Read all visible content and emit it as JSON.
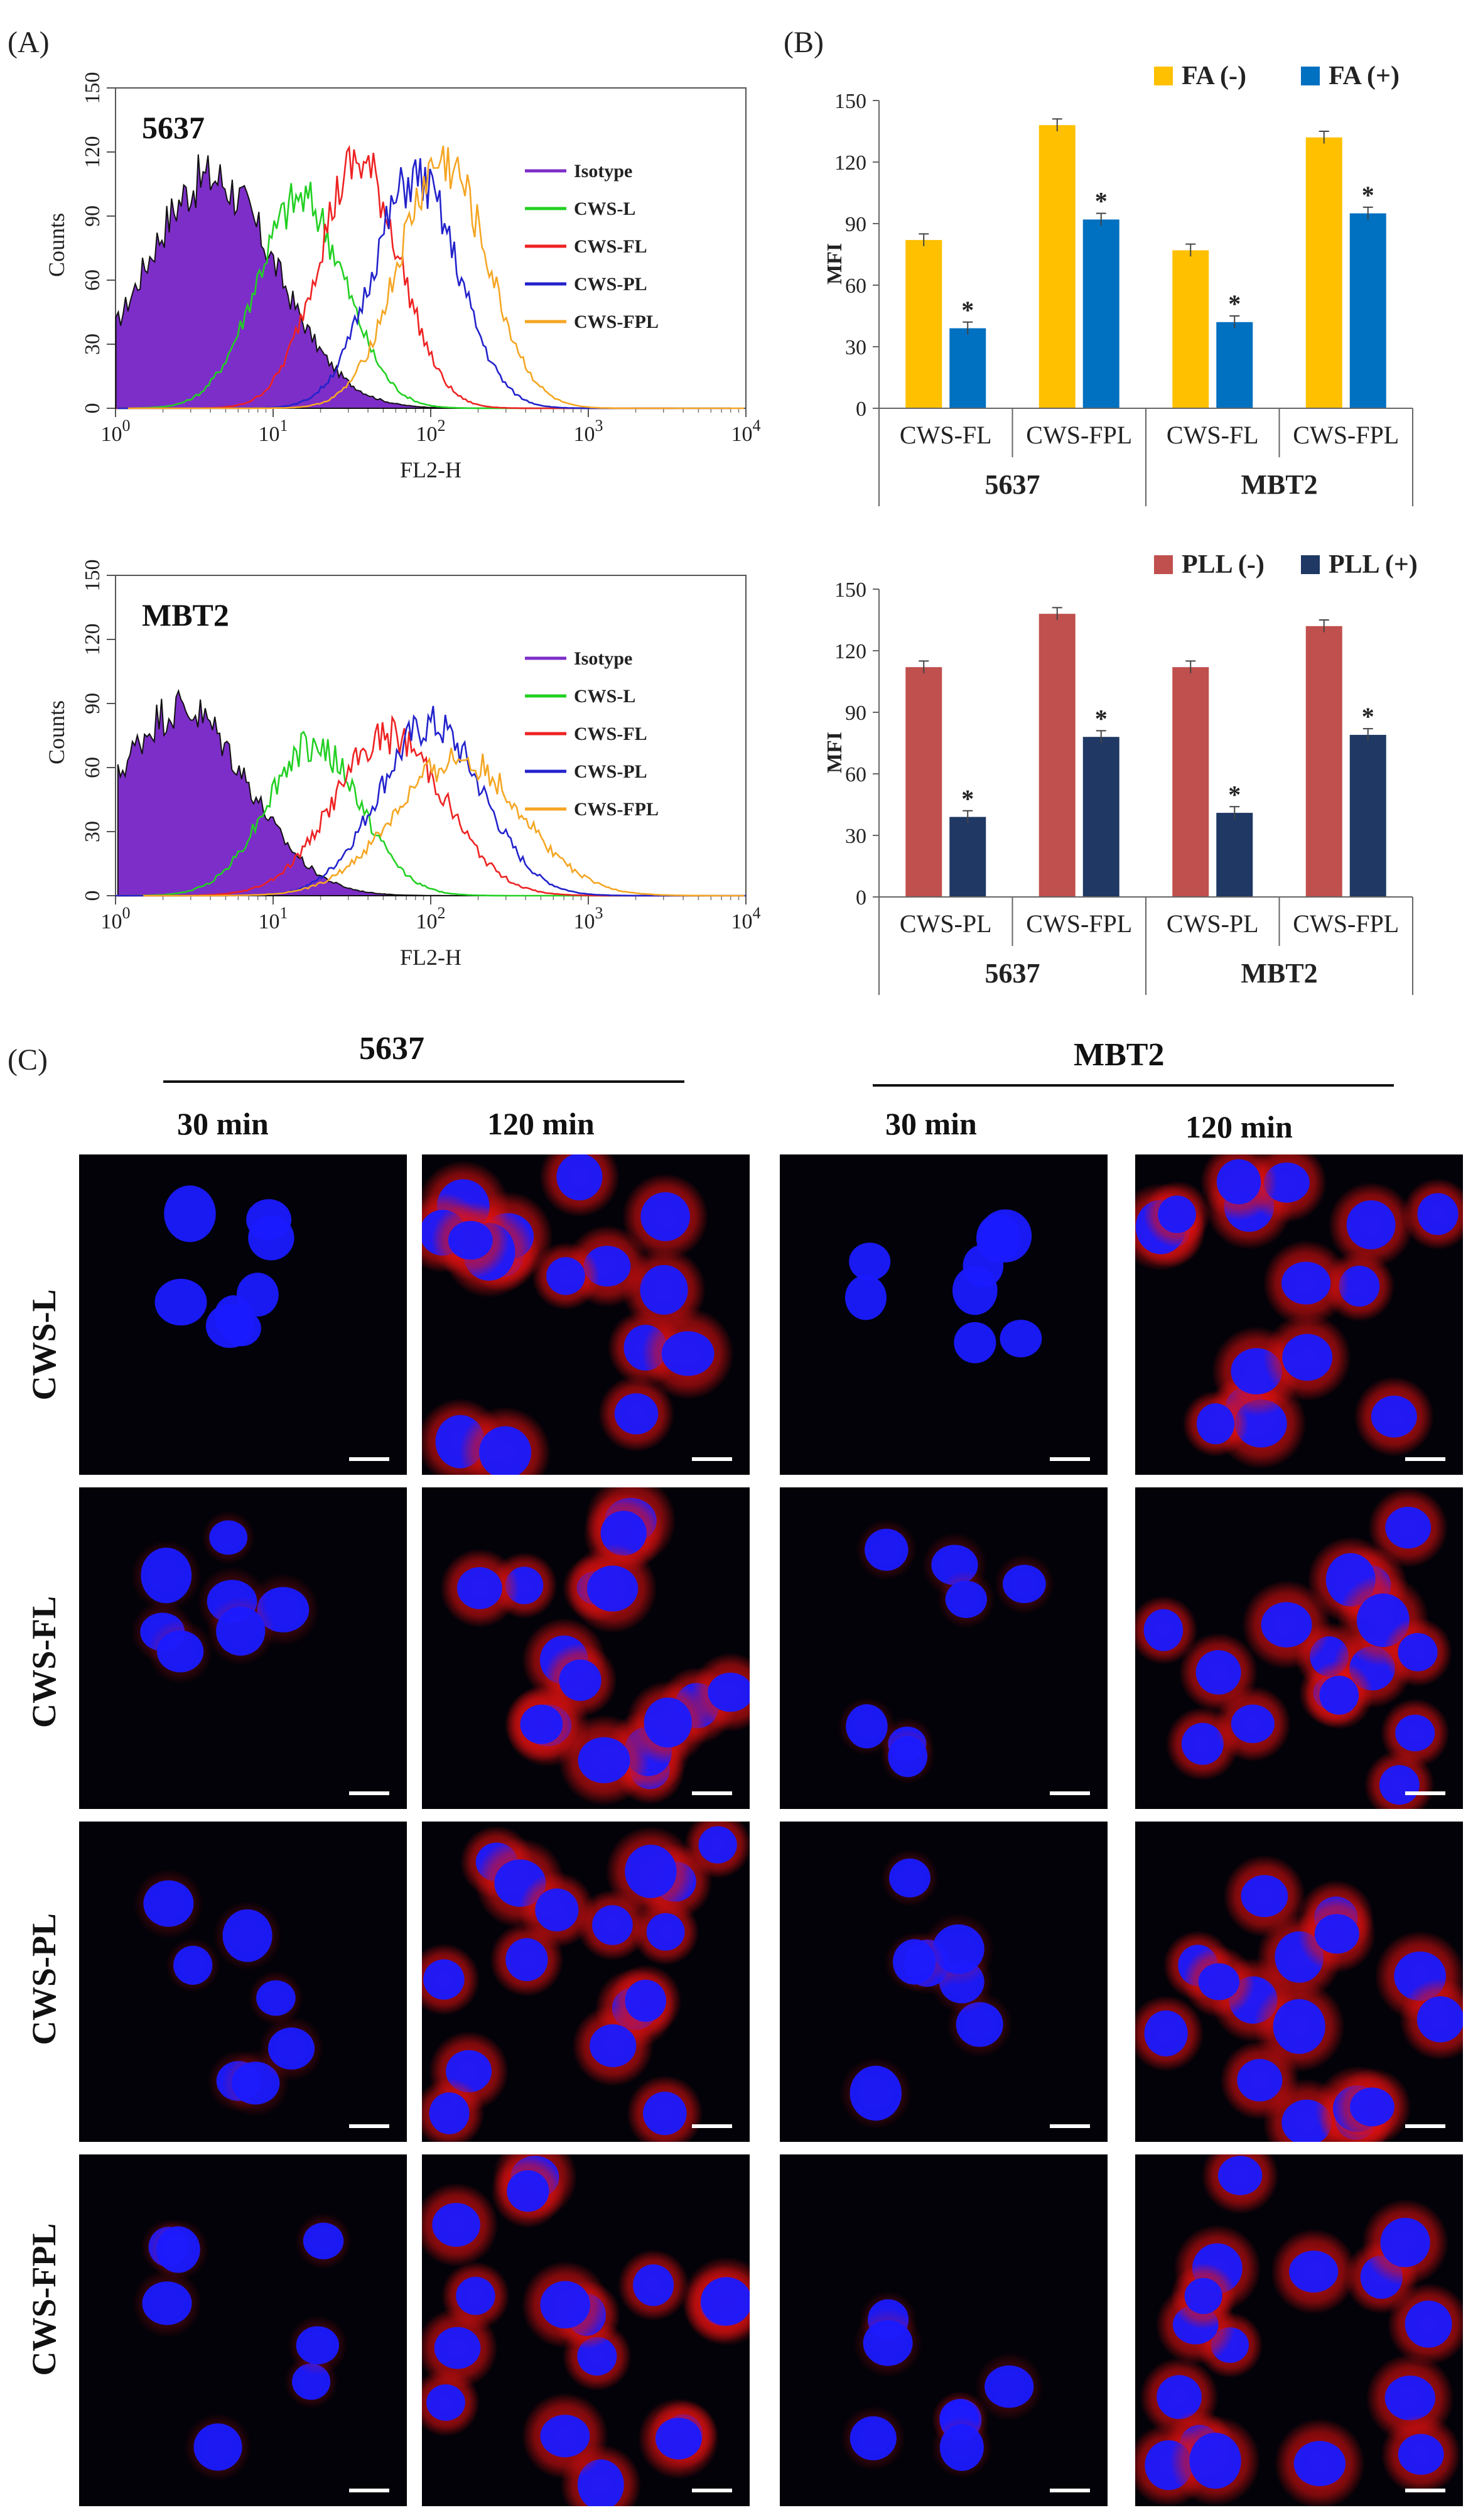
{
  "panels": {
    "A": "(A)",
    "B": "(B)",
    "C": "(C)"
  },
  "histograms": [
    {
      "cell_line": "5637",
      "ylabel": "Counts",
      "xlabel": "FL2-H",
      "y_ticks": [
        "0",
        "30",
        "60",
        "90",
        "120",
        "150"
      ],
      "x_ticks": [
        {
          "base": "10",
          "exp": "0"
        },
        {
          "base": "10",
          "exp": "1"
        },
        {
          "base": "10",
          "exp": "2"
        },
        {
          "base": "10",
          "exp": "3"
        },
        {
          "base": "10",
          "exp": "4"
        }
      ],
      "legend": [
        "Isotype",
        "CWS-L",
        "CWS-FL",
        "CWS-PL",
        "CWS-FPL"
      ]
    },
    {
      "cell_line": "MBT2",
      "ylabel": "Counts",
      "xlabel": "FL2-H",
      "y_ticks": [
        "0",
        "30",
        "60",
        "90",
        "120",
        "150"
      ],
      "x_ticks": [
        {
          "base": "10",
          "exp": "0"
        },
        {
          "base": "10",
          "exp": "1"
        },
        {
          "base": "10",
          "exp": "2"
        },
        {
          "base": "10",
          "exp": "3"
        },
        {
          "base": "10",
          "exp": "4"
        }
      ],
      "legend": [
        "Isotype",
        "CWS-L",
        "CWS-FL",
        "CWS-PL",
        "CWS-FPL"
      ]
    }
  ],
  "chart_data": [
    {
      "type": "line",
      "title": "5637",
      "xlabel": "FL2-H",
      "ylabel": "Counts",
      "xscale": "log",
      "xlim": [
        1,
        10000
      ],
      "ylim": [
        0,
        150
      ],
      "series": [
        {
          "name": "Isotype",
          "color": "#7d2ec8",
          "filled": true,
          "peak_x": 4,
          "peak_y": 108,
          "width": 0.42
        },
        {
          "name": "CWS-L",
          "color": "#22d022",
          "filled": false,
          "peak_x": 15,
          "peak_y": 98,
          "width": 0.28
        },
        {
          "name": "CWS-FL",
          "color": "#ee2222",
          "filled": false,
          "peak_x": 35,
          "peak_y": 115,
          "width": 0.26
        },
        {
          "name": "CWS-PL",
          "color": "#2222cc",
          "filled": false,
          "peak_x": 80,
          "peak_y": 108,
          "width": 0.27
        },
        {
          "name": "CWS-FPL",
          "color": "#f5a623",
          "filled": false,
          "peak_x": 120,
          "peak_y": 115,
          "width": 0.28
        }
      ],
      "legend_position": "right"
    },
    {
      "type": "line",
      "title": "MBT2",
      "xlabel": "FL2-H",
      "ylabel": "Counts",
      "xscale": "log",
      "xlim": [
        1,
        10000
      ],
      "ylim": [
        0,
        150
      ],
      "series": [
        {
          "name": "Isotype",
          "color": "#7d2ec8",
          "filled": true,
          "peak_x": 2.6,
          "peak_y": 88,
          "width": 0.42
        },
        {
          "name": "CWS-L",
          "color": "#22d022",
          "filled": false,
          "peak_x": 18,
          "peak_y": 70,
          "width": 0.3
        },
        {
          "name": "CWS-FL",
          "color": "#ee2222",
          "filled": false,
          "peak_x": 55,
          "peak_y": 75,
          "width": 0.35
        },
        {
          "name": "CWS-PL",
          "color": "#2222cc",
          "filled": false,
          "peak_x": 100,
          "peak_y": 80,
          "width": 0.33
        },
        {
          "name": "CWS-FPL",
          "color": "#f5a623",
          "filled": false,
          "peak_x": 150,
          "peak_y": 64,
          "width": 0.4
        }
      ],
      "legend_position": "right"
    },
    {
      "type": "bar",
      "ylabel": "MFI",
      "ylim": [
        0,
        150
      ],
      "y_ticks": [
        0,
        30,
        60,
        90,
        120,
        150
      ],
      "categories": [
        "CWS-FL",
        "CWS-FPL",
        "CWS-FL",
        "CWS-FPL"
      ],
      "groups": [
        "5637",
        "MBT2"
      ],
      "series": [
        {
          "name": "FA (-)",
          "color": "#ffc000",
          "values": [
            82,
            138,
            77,
            132
          ],
          "errors": [
            3,
            3,
            3,
            3
          ]
        },
        {
          "name": "FA (+)",
          "color": "#0070c0",
          "values": [
            39,
            92,
            42,
            95
          ],
          "errors": [
            3,
            3,
            3,
            3
          ]
        }
      ],
      "annotations": [
        "*",
        "*",
        "*",
        "*"
      ],
      "legend_position": "top-right"
    },
    {
      "type": "bar",
      "ylabel": "MFI",
      "ylim": [
        0,
        150
      ],
      "y_ticks": [
        0,
        30,
        60,
        90,
        120,
        150
      ],
      "categories": [
        "CWS-PL",
        "CWS-FPL",
        "CWS-PL",
        "CWS-FPL"
      ],
      "groups": [
        "5637",
        "MBT2"
      ],
      "series": [
        {
          "name": "PLL (-)",
          "color": "#c0504d",
          "values": [
            112,
            138,
            112,
            132
          ],
          "errors": [
            3,
            3,
            3,
            3
          ]
        },
        {
          "name": "PLL (+)",
          "color": "#1f3864",
          "values": [
            39,
            78,
            41,
            79
          ],
          "errors": [
            3,
            3,
            3,
            3
          ]
        }
      ],
      "annotations": [
        "*",
        "*",
        "*",
        "*"
      ],
      "legend_position": "top-right"
    }
  ],
  "bar_charts": [
    {
      "ylabel": "MFI",
      "y_ticks": [
        "0",
        "30",
        "60",
        "90",
        "120",
        "150"
      ],
      "legend": [
        "FA (-)",
        "FA (+)"
      ],
      "categories": [
        "CWS-FL",
        "CWS-FPL",
        "CWS-FL",
        "CWS-FPL"
      ],
      "groups": [
        "5637",
        "MBT2"
      ],
      "star": "*"
    },
    {
      "ylabel": "MFI",
      "y_ticks": [
        "0",
        "30",
        "60",
        "90",
        "120",
        "150"
      ],
      "legend": [
        "PLL (-)",
        "PLL (+)"
      ],
      "categories": [
        "CWS-PL",
        "CWS-FPL",
        "CWS-PL",
        "CWS-FPL"
      ],
      "groups": [
        "5637",
        "MBT2"
      ],
      "star": "*"
    }
  ],
  "microscopy": {
    "groups": [
      "5637",
      "MBT2"
    ],
    "times": [
      "30 min",
      "120 min",
      "30 min",
      "120 min"
    ],
    "rows": [
      "CWS-L",
      "CWS-FL",
      "CWS-PL",
      "CWS-FPL"
    ],
    "colors": {
      "nucleus": "#1a1aff",
      "stain": "#e01010",
      "background": "#020208"
    }
  }
}
